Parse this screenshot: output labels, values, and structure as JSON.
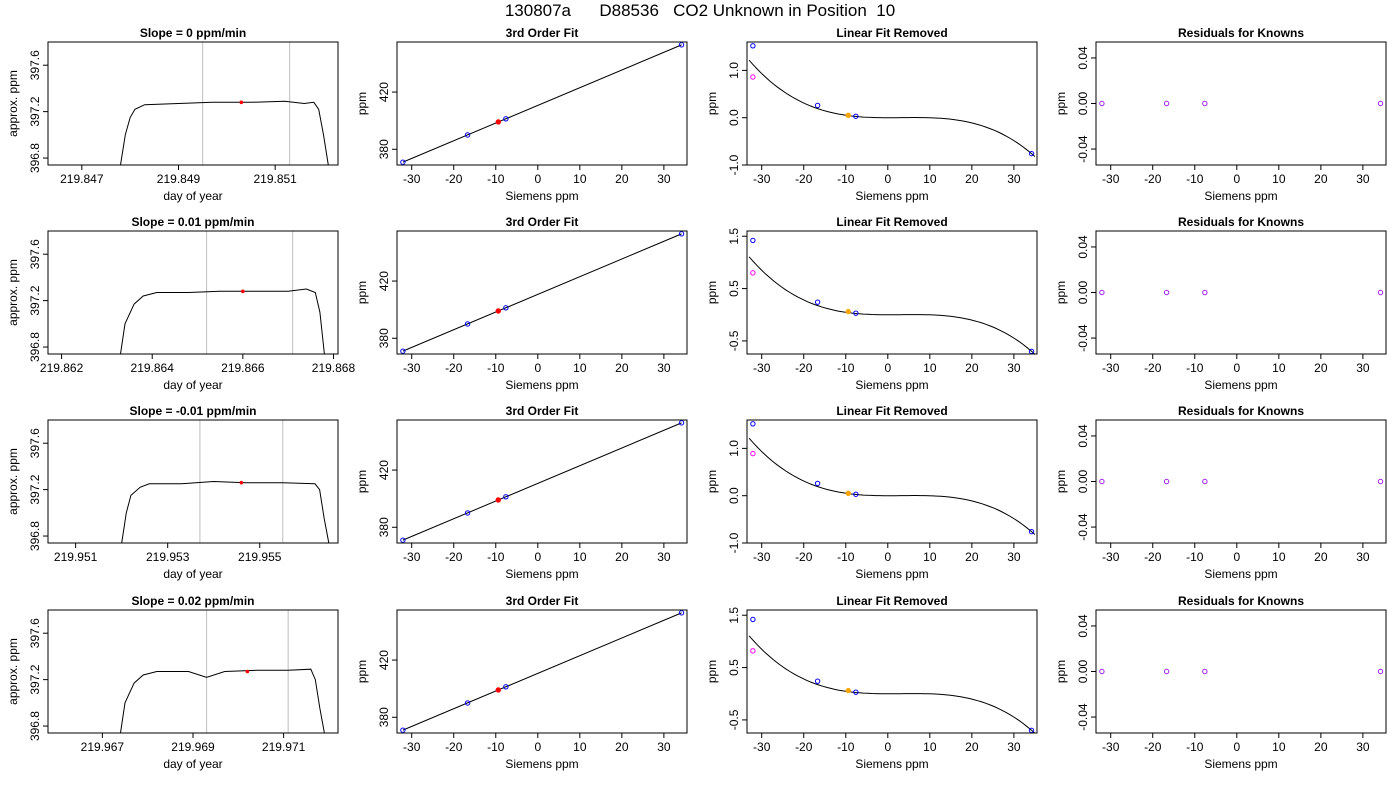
{
  "figure": {
    "title_parts": [
      "130807a",
      "D88536",
      "CO2 Unknown in Position  10"
    ]
  },
  "colors": {
    "trace": "#000000",
    "window": "#bebebe",
    "unknown_point": "#ff0000",
    "known_point": "#0000ff",
    "reference_point": "#ff00ff",
    "unknown_fit_point": "#ffa500",
    "residual_point": "#a020f0"
  },
  "chart_data": [
    {
      "type": "line",
      "row": 0,
      "col": 0,
      "title": "Slope =  0  ppm/min",
      "xlabel": "day of year",
      "ylabel": "approx. ppm",
      "xlim": [
        219.8463,
        219.8523
      ],
      "ylim": [
        396.74,
        397.8
      ],
      "xticks": [
        219.847,
        219.849,
        219.851
      ],
      "xtick_labels": [
        "219.847",
        "219.849",
        "219.851"
      ],
      "yticks": [
        396.8,
        397.2,
        397.6
      ],
      "ytick_labels": [
        "396.8",
        "397.2",
        "397.6"
      ],
      "window": [
        219.8495,
        219.8513
      ],
      "marker": [
        219.8503,
        397.28
      ],
      "trace": [
        [
          219.8478,
          396.74
        ],
        [
          219.8479,
          397.0
        ],
        [
          219.848,
          397.15
        ],
        [
          219.8481,
          397.22
        ],
        [
          219.8483,
          397.26
        ],
        [
          219.849,
          397.27
        ],
        [
          219.8497,
          397.28
        ],
        [
          219.8505,
          397.28
        ],
        [
          219.8512,
          397.29
        ],
        [
          219.8516,
          397.27
        ],
        [
          219.8518,
          397.28
        ],
        [
          219.8519,
          397.22
        ],
        [
          219.852,
          397.0
        ],
        [
          219.8521,
          396.74
        ]
      ]
    },
    {
      "type": "scatter",
      "row": 0,
      "col": 1,
      "title": "3rd Order Fit",
      "xlabel": "Siemens ppm",
      "ylabel": "ppm",
      "xlim": [
        -33.5,
        35.5
      ],
      "ylim": [
        369,
        455
      ],
      "xticks": [
        -30,
        -20,
        -10,
        0,
        10,
        20,
        30
      ],
      "xtick_labels": [
        "-30",
        "-20",
        "-10",
        "0",
        "10",
        "20",
        "30"
      ],
      "yticks": [
        380,
        420
      ],
      "ytick_labels": [
        "380",
        "420"
      ],
      "fit_line": [
        [
          -32.1,
          371.0
        ],
        [
          34.2,
          453.0
        ]
      ],
      "knowns": [
        [
          -32.1,
          371.0
        ],
        [
          -16.7,
          390.0
        ],
        [
          -7.6,
          401.3
        ],
        [
          34.2,
          453.0
        ]
      ],
      "unknown": [
        -9.4,
        399.1
      ]
    },
    {
      "type": "line",
      "row": 0,
      "col": 2,
      "title": "Linear Fit Removed",
      "xlabel": "Siemens ppm",
      "ylabel": "ppm",
      "xlim": [
        -33.5,
        35.5
      ],
      "ylim": [
        -1.0,
        1.6
      ],
      "xticks": [
        -30,
        -20,
        -10,
        0,
        10,
        20,
        30
      ],
      "xtick_labels": [
        "-30",
        "-20",
        "-10",
        "0",
        "10",
        "20",
        "30"
      ],
      "yticks": [
        -1.0,
        0.0,
        1.0
      ],
      "ytick_labels": [
        "-1.0",
        "0.0",
        "1.0"
      ],
      "cubic": [
        -2.626e-05,
        0.0002494,
        0.0,
        0.0
      ],
      "curve_range": [
        -33.0,
        35.0
      ],
      "knowns": [
        [
          -32.1,
          1.52
        ],
        [
          -16.7,
          0.26
        ],
        [
          -7.6,
          0.03
        ],
        [
          34.2,
          -0.76
        ]
      ],
      "reference": [
        -32.1,
        0.86
      ],
      "unknown": [
        -9.4,
        0.05
      ]
    },
    {
      "type": "scatter",
      "row": 0,
      "col": 3,
      "title": "Residuals for Knowns",
      "xlabel": "Siemens ppm",
      "ylabel": "ppm",
      "xlim": [
        -33.5,
        35.5
      ],
      "ylim": [
        -0.054,
        0.054
      ],
      "xticks": [
        -30,
        -20,
        -10,
        0,
        10,
        20,
        30
      ],
      "xtick_labels": [
        "-30",
        "-20",
        "-10",
        "0",
        "10",
        "20",
        "30"
      ],
      "yticks": [
        -0.04,
        0.0,
        0.04
      ],
      "ytick_labels": [
        "-0.04",
        "0.00",
        "0.04"
      ],
      "residuals": [
        [
          -32.1,
          0.0
        ],
        [
          -16.7,
          0.0
        ],
        [
          -7.6,
          0.0
        ],
        [
          34.2,
          0.0
        ]
      ]
    },
    {
      "type": "line",
      "row": 1,
      "col": 0,
      "title": "Slope =  0.01  ppm/min",
      "xlabel": "day of year",
      "ylabel": "approx. ppm",
      "xlim": [
        219.8617,
        219.8681
      ],
      "ylim": [
        396.74,
        397.8
      ],
      "xticks": [
        219.862,
        219.864,
        219.866,
        219.868
      ],
      "xtick_labels": [
        "219.862",
        "219.864",
        "219.866",
        "219.868"
      ],
      "yticks": [
        396.8,
        397.2,
        397.6
      ],
      "ytick_labels": [
        "396.8",
        "397.2",
        "397.6"
      ],
      "window": [
        219.8652,
        219.8671
      ],
      "marker": [
        219.866,
        397.28
      ],
      "trace": [
        [
          219.8633,
          396.74
        ],
        [
          219.8634,
          397.0
        ],
        [
          219.8636,
          397.17
        ],
        [
          219.8638,
          397.24
        ],
        [
          219.8641,
          397.27
        ],
        [
          219.8648,
          397.27
        ],
        [
          219.8655,
          397.28
        ],
        [
          219.8662,
          397.28
        ],
        [
          219.867,
          397.28
        ],
        [
          219.8674,
          397.3
        ],
        [
          219.8676,
          397.27
        ],
        [
          219.8677,
          397.1
        ],
        [
          219.8678,
          396.74
        ]
      ]
    },
    {
      "type": "scatter",
      "row": 1,
      "col": 1,
      "title": "3rd Order Fit",
      "xlabel": "Siemens ppm",
      "ylabel": "ppm",
      "xlim": [
        -33.5,
        35.5
      ],
      "ylim": [
        369,
        455
      ],
      "xticks": [
        -30,
        -20,
        -10,
        0,
        10,
        20,
        30
      ],
      "xtick_labels": [
        "-30",
        "-20",
        "-10",
        "0",
        "10",
        "20",
        "30"
      ],
      "yticks": [
        380,
        420
      ],
      "ytick_labels": [
        "380",
        "420"
      ],
      "fit_line": [
        [
          -32.1,
          371.0
        ],
        [
          34.2,
          453.0
        ]
      ],
      "knowns": [
        [
          -32.1,
          371.0
        ],
        [
          -16.7,
          390.0
        ],
        [
          -7.6,
          401.3
        ],
        [
          34.2,
          453.0
        ]
      ],
      "unknown": [
        -9.4,
        399.1
      ]
    },
    {
      "type": "line",
      "row": 1,
      "col": 2,
      "title": "Linear Fit Removed",
      "xlabel": "Siemens ppm",
      "ylabel": "ppm",
      "xlim": [
        -33.5,
        35.5
      ],
      "ylim": [
        -0.75,
        1.6
      ],
      "xticks": [
        -30,
        -20,
        -10,
        0,
        10,
        20,
        30
      ],
      "xtick_labels": [
        "-30",
        "-20",
        "-10",
        "0",
        "10",
        "20",
        "30"
      ],
      "yticks": [
        -0.5,
        0.5,
        1.5
      ],
      "ytick_labels": [
        "-0.5",
        "0.5",
        "1.5"
      ],
      "cubic": [
        -2.4e-05,
        0.0002245,
        0.0,
        0.0
      ],
      "curve_range": [
        -33.0,
        35.0
      ],
      "knowns": [
        [
          -32.1,
          1.42
        ],
        [
          -16.7,
          0.24
        ],
        [
          -7.6,
          0.03
        ],
        [
          34.2,
          -0.7
        ]
      ],
      "reference": [
        -32.1,
        0.8
      ],
      "unknown": [
        -9.4,
        0.06
      ]
    },
    {
      "type": "scatter",
      "row": 1,
      "col": 3,
      "title": "Residuals for Knowns",
      "xlabel": "Siemens ppm",
      "ylabel": "ppm",
      "xlim": [
        -33.5,
        35.5
      ],
      "ylim": [
        -0.054,
        0.054
      ],
      "xticks": [
        -30,
        -20,
        -10,
        0,
        10,
        20,
        30
      ],
      "xtick_labels": [
        "-30",
        "-20",
        "-10",
        "0",
        "10",
        "20",
        "30"
      ],
      "yticks": [
        -0.04,
        0.0,
        0.04
      ],
      "ytick_labels": [
        "-0.04",
        "0.00",
        "0.04"
      ],
      "residuals": [
        [
          -32.1,
          0.0
        ],
        [
          -16.7,
          0.0
        ],
        [
          -7.6,
          0.0
        ],
        [
          34.2,
          0.0
        ]
      ]
    },
    {
      "type": "line",
      "row": 2,
      "col": 0,
      "title": "Slope =  -0.01  ppm/min",
      "xlabel": "day of year",
      "ylabel": "approx. ppm",
      "xlim": [
        219.9504,
        219.9567
      ],
      "ylim": [
        396.74,
        397.8
      ],
      "xticks": [
        219.951,
        219.953,
        219.955
      ],
      "xtick_labels": [
        "219.951",
        "219.953",
        "219.955"
      ],
      "yticks": [
        396.8,
        397.2,
        397.6
      ],
      "ytick_labels": [
        "396.8",
        "397.2",
        "397.6"
      ],
      "window": [
        219.9537,
        219.9555
      ],
      "marker": [
        219.9546,
        397.26
      ],
      "trace": [
        [
          219.952,
          396.74
        ],
        [
          219.9521,
          397.0
        ],
        [
          219.9522,
          397.15
        ],
        [
          219.9524,
          397.22
        ],
        [
          219.9526,
          397.25
        ],
        [
          219.9533,
          397.25
        ],
        [
          219.954,
          397.27
        ],
        [
          219.9547,
          397.26
        ],
        [
          219.9555,
          397.26
        ],
        [
          219.9562,
          397.25
        ],
        [
          219.9563,
          397.2
        ],
        [
          219.9564,
          396.95
        ],
        [
          219.9565,
          396.74
        ]
      ]
    },
    {
      "type": "scatter",
      "row": 2,
      "col": 1,
      "title": "3rd Order Fit",
      "xlabel": "Siemens ppm",
      "ylabel": "ppm",
      "xlim": [
        -33.5,
        35.5
      ],
      "ylim": [
        369,
        455
      ],
      "xticks": [
        -30,
        -20,
        -10,
        0,
        10,
        20,
        30
      ],
      "xtick_labels": [
        "-30",
        "-20",
        "-10",
        "0",
        "10",
        "20",
        "30"
      ],
      "yticks": [
        380,
        420
      ],
      "ytick_labels": [
        "380",
        "420"
      ],
      "fit_line": [
        [
          -32.1,
          371.0
        ],
        [
          34.2,
          453.0
        ]
      ],
      "knowns": [
        [
          -32.1,
          371.0
        ],
        [
          -16.7,
          390.0
        ],
        [
          -7.6,
          401.3
        ],
        [
          34.2,
          453.0
        ]
      ],
      "unknown": [
        -9.4,
        399.1
      ]
    },
    {
      "type": "line",
      "row": 2,
      "col": 2,
      "title": "Linear Fit Removed",
      "xlabel": "Siemens ppm",
      "ylabel": "ppm",
      "xlim": [
        -33.5,
        35.5
      ],
      "ylim": [
        -1.0,
        1.6
      ],
      "xticks": [
        -30,
        -20,
        -10,
        0,
        10,
        20,
        30
      ],
      "xtick_labels": [
        "-30",
        "-20",
        "-10",
        "0",
        "10",
        "20",
        "30"
      ],
      "yticks": [
        -1.0,
        0.0,
        1.0
      ],
      "ytick_labels": [
        "-1.0",
        "0.0",
        "1.0"
      ],
      "cubic": [
        -2.626e-05,
        0.0002494,
        0.0,
        0.0
      ],
      "curve_range": [
        -33.0,
        35.0
      ],
      "knowns": [
        [
          -32.1,
          1.52
        ],
        [
          -16.7,
          0.26
        ],
        [
          -7.6,
          0.03
        ],
        [
          34.2,
          -0.76
        ]
      ],
      "reference": [
        -32.1,
        0.89
      ],
      "unknown": [
        -9.4,
        0.05
      ]
    },
    {
      "type": "scatter",
      "row": 2,
      "col": 3,
      "title": "Residuals for Knowns",
      "xlabel": "Siemens ppm",
      "ylabel": "ppm",
      "xlim": [
        -33.5,
        35.5
      ],
      "ylim": [
        -0.054,
        0.054
      ],
      "xticks": [
        -30,
        -20,
        -10,
        0,
        10,
        20,
        30
      ],
      "xtick_labels": [
        "-30",
        "-20",
        "-10",
        "0",
        "10",
        "20",
        "30"
      ],
      "yticks": [
        -0.04,
        0.0,
        0.04
      ],
      "ytick_labels": [
        "-0.04",
        "0.00",
        "0.04"
      ],
      "residuals": [
        [
          -32.1,
          0.0
        ],
        [
          -16.7,
          0.0
        ],
        [
          -7.6,
          0.0
        ],
        [
          34.2,
          0.0
        ]
      ]
    },
    {
      "type": "line",
      "row": 3,
      "col": 0,
      "title": "Slope =  0.02  ppm/min",
      "xlabel": "day of year",
      "ylabel": "approx. ppm",
      "xlim": [
        219.9658,
        219.9722
      ],
      "ylim": [
        396.74,
        397.8
      ],
      "xticks": [
        219.967,
        219.969,
        219.971
      ],
      "xtick_labels": [
        "219.967",
        "219.969",
        "219.971"
      ],
      "yticks": [
        396.8,
        397.2,
        397.6
      ],
      "ytick_labels": [
        "396.8",
        "397.2",
        "397.6"
      ],
      "window": [
        219.9693,
        219.9711
      ],
      "marker": [
        219.9702,
        397.27
      ],
      "trace": [
        [
          219.9674,
          396.74
        ],
        [
          219.9675,
          397.0
        ],
        [
          219.9677,
          397.17
        ],
        [
          219.9679,
          397.24
        ],
        [
          219.9682,
          397.27
        ],
        [
          219.9689,
          397.27
        ],
        [
          219.9693,
          397.22
        ],
        [
          219.9697,
          397.27
        ],
        [
          219.9704,
          397.28
        ],
        [
          219.9711,
          397.28
        ],
        [
          219.9716,
          397.29
        ],
        [
          219.9717,
          397.2
        ],
        [
          219.9718,
          396.95
        ],
        [
          219.9719,
          396.74
        ]
      ]
    },
    {
      "type": "scatter",
      "row": 3,
      "col": 1,
      "title": "3rd Order Fit",
      "xlabel": "Siemens ppm",
      "ylabel": "ppm",
      "xlim": [
        -33.5,
        35.5
      ],
      "ylim": [
        369,
        455
      ],
      "xticks": [
        -30,
        -20,
        -10,
        0,
        10,
        20,
        30
      ],
      "xtick_labels": [
        "-30",
        "-20",
        "-10",
        "0",
        "10",
        "20",
        "30"
      ],
      "yticks": [
        380,
        420
      ],
      "ytick_labels": [
        "380",
        "420"
      ],
      "fit_line": [
        [
          -32.1,
          371.0
        ],
        [
          34.2,
          453.0
        ]
      ],
      "knowns": [
        [
          -32.1,
          371.0
        ],
        [
          -16.7,
          390.0
        ],
        [
          -7.6,
          401.3
        ],
        [
          34.2,
          453.0
        ]
      ],
      "unknown": [
        -9.4,
        399.1
      ]
    },
    {
      "type": "line",
      "row": 3,
      "col": 2,
      "title": "Linear Fit Removed",
      "xlabel": "Siemens ppm",
      "ylabel": "ppm",
      "xlim": [
        -33.5,
        35.5
      ],
      "ylim": [
        -0.75,
        1.6
      ],
      "xticks": [
        -30,
        -20,
        -10,
        0,
        10,
        20,
        30
      ],
      "xtick_labels": [
        "-30",
        "-20",
        "-10",
        "0",
        "10",
        "20",
        "30"
      ],
      "yticks": [
        -0.5,
        0.5,
        1.5
      ],
      "ytick_labels": [
        "-0.5",
        "0.5",
        "1.5"
      ],
      "cubic": [
        -2.4e-05,
        0.0002245,
        0.0,
        0.0
      ],
      "curve_range": [
        -33.0,
        35.0
      ],
      "knowns": [
        [
          -32.1,
          1.42
        ],
        [
          -16.7,
          0.24
        ],
        [
          -7.6,
          0.03
        ],
        [
          34.2,
          -0.7
        ]
      ],
      "reference": [
        -32.1,
        0.82
      ],
      "unknown": [
        -9.4,
        0.06
      ]
    },
    {
      "type": "scatter",
      "row": 3,
      "col": 3,
      "title": "Residuals for Knowns",
      "xlabel": "Siemens ppm",
      "ylabel": "ppm",
      "xlim": [
        -33.5,
        35.5
      ],
      "ylim": [
        -0.054,
        0.054
      ],
      "xticks": [
        -30,
        -20,
        -10,
        0,
        10,
        20,
        30
      ],
      "xtick_labels": [
        "-30",
        "-20",
        "-10",
        "0",
        "10",
        "20",
        "30"
      ],
      "yticks": [
        -0.04,
        0.0,
        0.04
      ],
      "ytick_labels": [
        "-0.04",
        "0.00",
        "0.04"
      ],
      "residuals": [
        [
          -32.1,
          0.0
        ],
        [
          -16.7,
          0.0
        ],
        [
          -7.6,
          0.0
        ],
        [
          34.2,
          0.0
        ]
      ]
    }
  ]
}
